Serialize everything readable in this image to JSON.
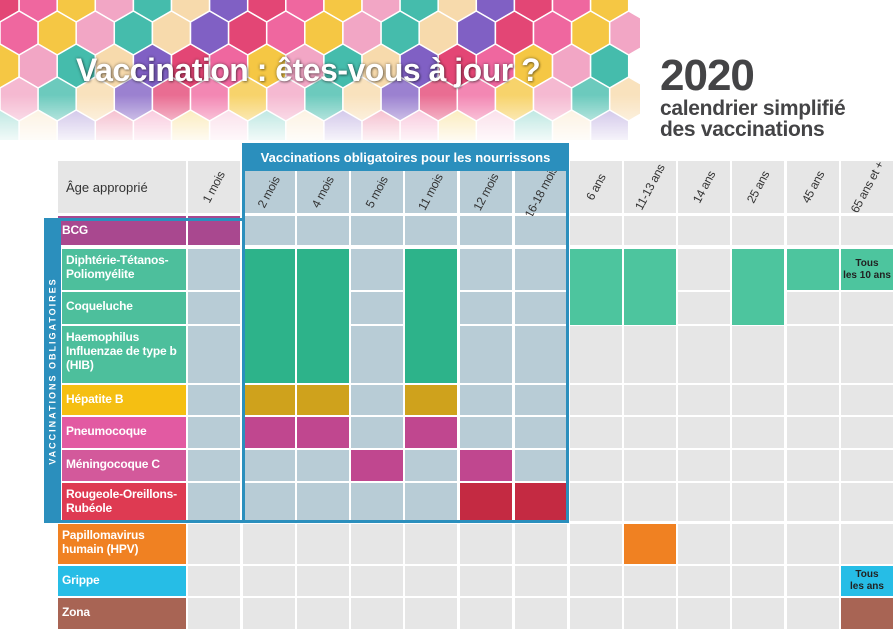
{
  "header": {
    "title": "Vaccination : êtes-vous à jour ?",
    "year": "2020",
    "subtitle_line1": "calendrier simplifié",
    "subtitle_line2": "des vaccinations"
  },
  "table": {
    "age_column_label": "Âge approprié",
    "mandatory_infants_label": "Vaccinations obligatoires pour les nourrissons",
    "mandatory_side_label": "VACCINATIONS OBLIGATOIRES",
    "ages": [
      "1 mois",
      "2 mois",
      "4 mois",
      "5 mois",
      "11 mois",
      "12 mois",
      "16-18 mois",
      "6 ans",
      "11-13 ans",
      "14 ans",
      "25 ans",
      "45 ans",
      "65 ans et +"
    ],
    "vaccines": [
      {
        "label": "BCG",
        "color": "#a9488f"
      },
      {
        "label": "Diphtérie-Tétanos-\nPoliomyélite",
        "color": "#4dbf9c"
      },
      {
        "label": "Coqueluche",
        "color": "#4dbf9c"
      },
      {
        "label": "Haemophilus\nInfluenzae de type b\n(HIB)",
        "color": "#4dbf9c"
      },
      {
        "label": "Hépatite B",
        "color": "#f5bf12"
      },
      {
        "label": "Pneumocoque",
        "color": "#e25aa2"
      },
      {
        "label": "Méningocoque C",
        "color": "#d3599b"
      },
      {
        "label": "Rougeole-Oreillons-\nRubéole",
        "color": "#de3a52"
      },
      {
        "label": "Papillomavirus\nhumain (HPV)",
        "color": "#f08122"
      },
      {
        "label": "Grippe",
        "color": "#26bde6"
      },
      {
        "label": "Zona",
        "color": "#a86454"
      }
    ],
    "notes": {
      "dtp_65": "Tous\nles 10 ans",
      "grippe_65": "Tous\nles ans"
    },
    "colors": {
      "mandatory_frame": "#2b8fbd",
      "mandatory_cell": "#b8ccd6",
      "empty_cell": "#e6e6e6",
      "dtp_dose": "#2db38a",
      "dtp_dose_light": "#4dc59e",
      "hepb_dose": "#cfa21c",
      "pneumo_dose": "#c0478f",
      "menc_dose": "#c0478f",
      "ror_dose": "#c42a42",
      "hpv_dose": "#f08122",
      "grippe_dose": "#26bde6",
      "zona_dose": "#a86454",
      "bcg_dose": "#a9488f"
    }
  }
}
